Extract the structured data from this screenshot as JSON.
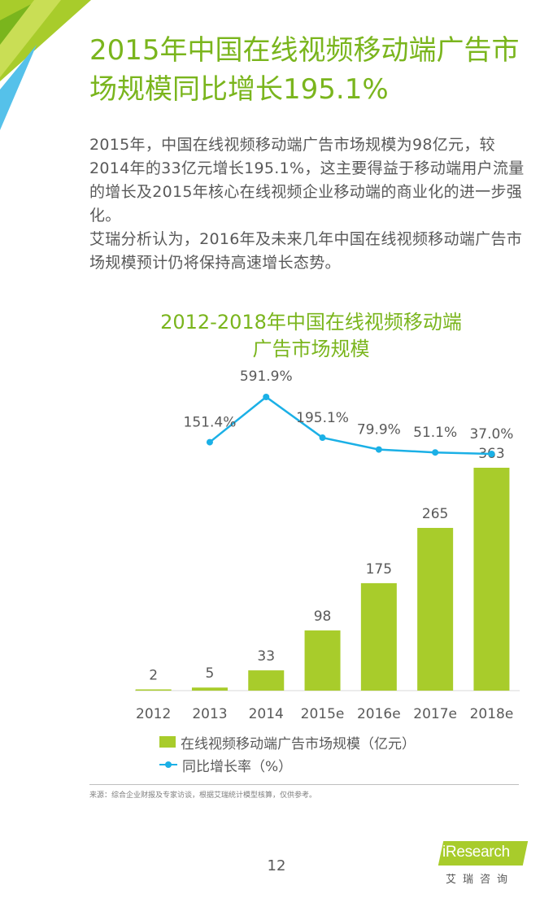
{
  "heading": "2015年中国在线视频移动端广告市场规模同比增长195.1%",
  "body": [
    "2015年，中国在线视频移动端广告市场规模为98亿元，较2014年的33亿元增长195.1%，这主要得益于移动端用户流量的增长及2015年核心在线视频企业移动端的商业化的进一步强化。",
    "艾瑞分析认为，2016年及未来几年中国在线视频移动端广告市场规模预计仍将保持高速增长态势。"
  ],
  "chart_title": [
    "2012-2018年中国在线视频移动端",
    "广告市场规模"
  ],
  "source": "来源：综合企业财报及专家访谈，根据艾瑞统计模型核算，仅供参考。",
  "page_number": "12",
  "logo": {
    "text": "iResearch",
    "subtitle": "艾瑞咨询"
  },
  "colors": {
    "title_green": "#7ab51d",
    "bar_green": "#a8cc2b",
    "line_blue": "#1bb0e6",
    "text_gray": "#595959"
  },
  "chart_data": {
    "type": "bar",
    "title": "2012-2018年中国在线视频移动端广告市场规模",
    "categories": [
      "2012",
      "2013",
      "2014",
      "2015e",
      "2016e",
      "2017e",
      "2018e"
    ],
    "series": [
      {
        "name": "在线视频移动端广告市场规模（亿元）",
        "type": "bar",
        "values": [
          2,
          5,
          33,
          98,
          175,
          265,
          363
        ],
        "labels": [
          "2",
          "5",
          "33",
          "98",
          "175",
          "265",
          "363"
        ]
      },
      {
        "name": "同比增长率（%）",
        "type": "line",
        "values": [
          null,
          151.4,
          591.9,
          195.1,
          79.9,
          51.1,
          37.0
        ],
        "labels": [
          "",
          "151.4%",
          "591.9%",
          "195.1%",
          "79.9%",
          "51.1%",
          "37.0%"
        ]
      }
    ],
    "legend_position": "bottom",
    "grid": false
  }
}
